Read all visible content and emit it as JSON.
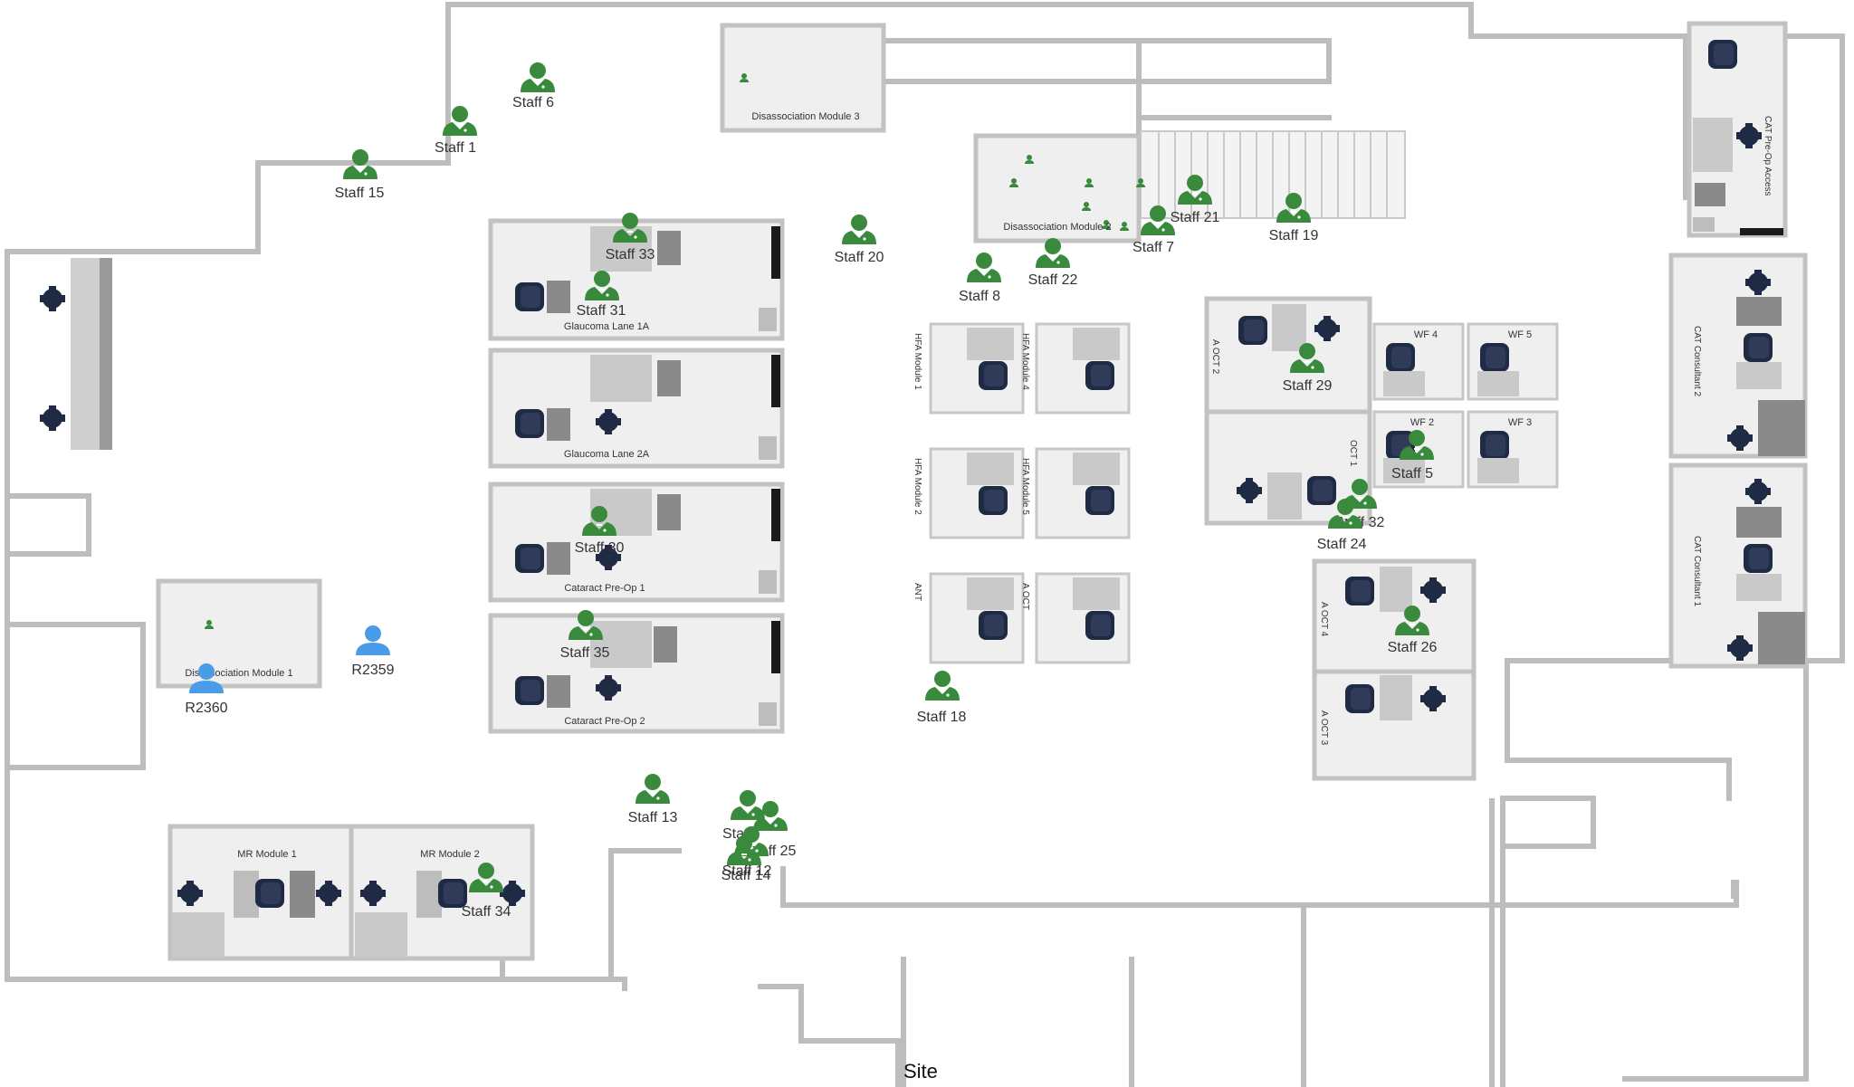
{
  "colors": {
    "staff_marker": "#3a8a3d",
    "patient_marker": "#4a9be8",
    "wall": "#bdbdbd",
    "room_fill": "#efefef",
    "chair": "#1f2a44"
  },
  "site_label": "Site",
  "rooms": {
    "dissociation_module_3": "Disassociation Module 3",
    "dissociation_module_2": "Disassociation Module 2",
    "dissociation_module_1": "Disassociation Module 1",
    "glaucoma_lane_1a": "Glaucoma Lane 1A",
    "glaucoma_lane_2a": "Glaucoma Lane 2A",
    "cataract_preop_1": "Cataract Pre-Op 1",
    "cataract_preop_2": "Cataract Pre-Op 2",
    "mr_module_1": "MR Module 1",
    "mr_module_2": "MR Module 2",
    "hfa_module_1": "HFA Module 1",
    "hfa_module_4": "HFA Module 4",
    "hfa_module_2": "HFA Module 2",
    "hfa_module_5": "HFA Module 5",
    "ant": "ANT",
    "a_oct": "A OCT",
    "a_oct_2": "A OCT 2",
    "oct_1": "OCT 1",
    "a_oct_4": "A OCT 4",
    "a_oct_3": "A OCT 3",
    "wf_4": "WF 4",
    "wf_5": "WF 5",
    "wf_2": "WF 2",
    "wf_3": "WF 3",
    "cat_preop_access": "CAT Pre-Op Access",
    "cat_consultant_2": "CAT Consultant 2",
    "cat_consultant_1": "CAT Consultant 1"
  },
  "staff": [
    {
      "label": "Staff 6",
      "icon": "staff-icon"
    },
    {
      "label": "Staff 1",
      "icon": "staff-icon"
    },
    {
      "label": "Staff 15",
      "icon": "staff-icon"
    },
    {
      "label": "Staff 33",
      "icon": "staff-icon"
    },
    {
      "label": "Staff 31",
      "icon": "staff-icon"
    },
    {
      "label": "Staff 20",
      "icon": "staff-icon"
    },
    {
      "label": "Staff 8",
      "icon": "staff-icon"
    },
    {
      "label": "Staff 22",
      "icon": "staff-icon"
    },
    {
      "label": "Staff 7",
      "icon": "staff-icon"
    },
    {
      "label": "Staff 21",
      "icon": "staff-icon"
    },
    {
      "label": "Staff 19",
      "icon": "staff-icon"
    },
    {
      "label": "Staff 29",
      "icon": "staff-icon"
    },
    {
      "label": "Staff 5",
      "icon": "staff-icon"
    },
    {
      "label": "Staff 32",
      "icon": "staff-icon"
    },
    {
      "label": "Staff 24",
      "icon": "staff-icon"
    },
    {
      "label": "Staff 26",
      "icon": "staff-icon"
    },
    {
      "label": "Staff 30",
      "icon": "staff-icon"
    },
    {
      "label": "Staff 35",
      "icon": "staff-icon"
    },
    {
      "label": "Staff 18",
      "icon": "staff-icon"
    },
    {
      "label": "Staff 13",
      "icon": "staff-icon"
    },
    {
      "label": "Sta",
      "icon": "staff-icon"
    },
    {
      "label": "Staff 25",
      "icon": "staff-icon"
    },
    {
      "label": "Staff 12",
      "icon": "staff-icon"
    },
    {
      "label": "Staff 14",
      "icon": "staff-icon"
    },
    {
      "label": "Staff 34",
      "icon": "staff-icon"
    }
  ],
  "patients": [
    {
      "label": "R2359",
      "icon": "patient-icon"
    },
    {
      "label": "R2360",
      "icon": "patient-icon"
    }
  ]
}
